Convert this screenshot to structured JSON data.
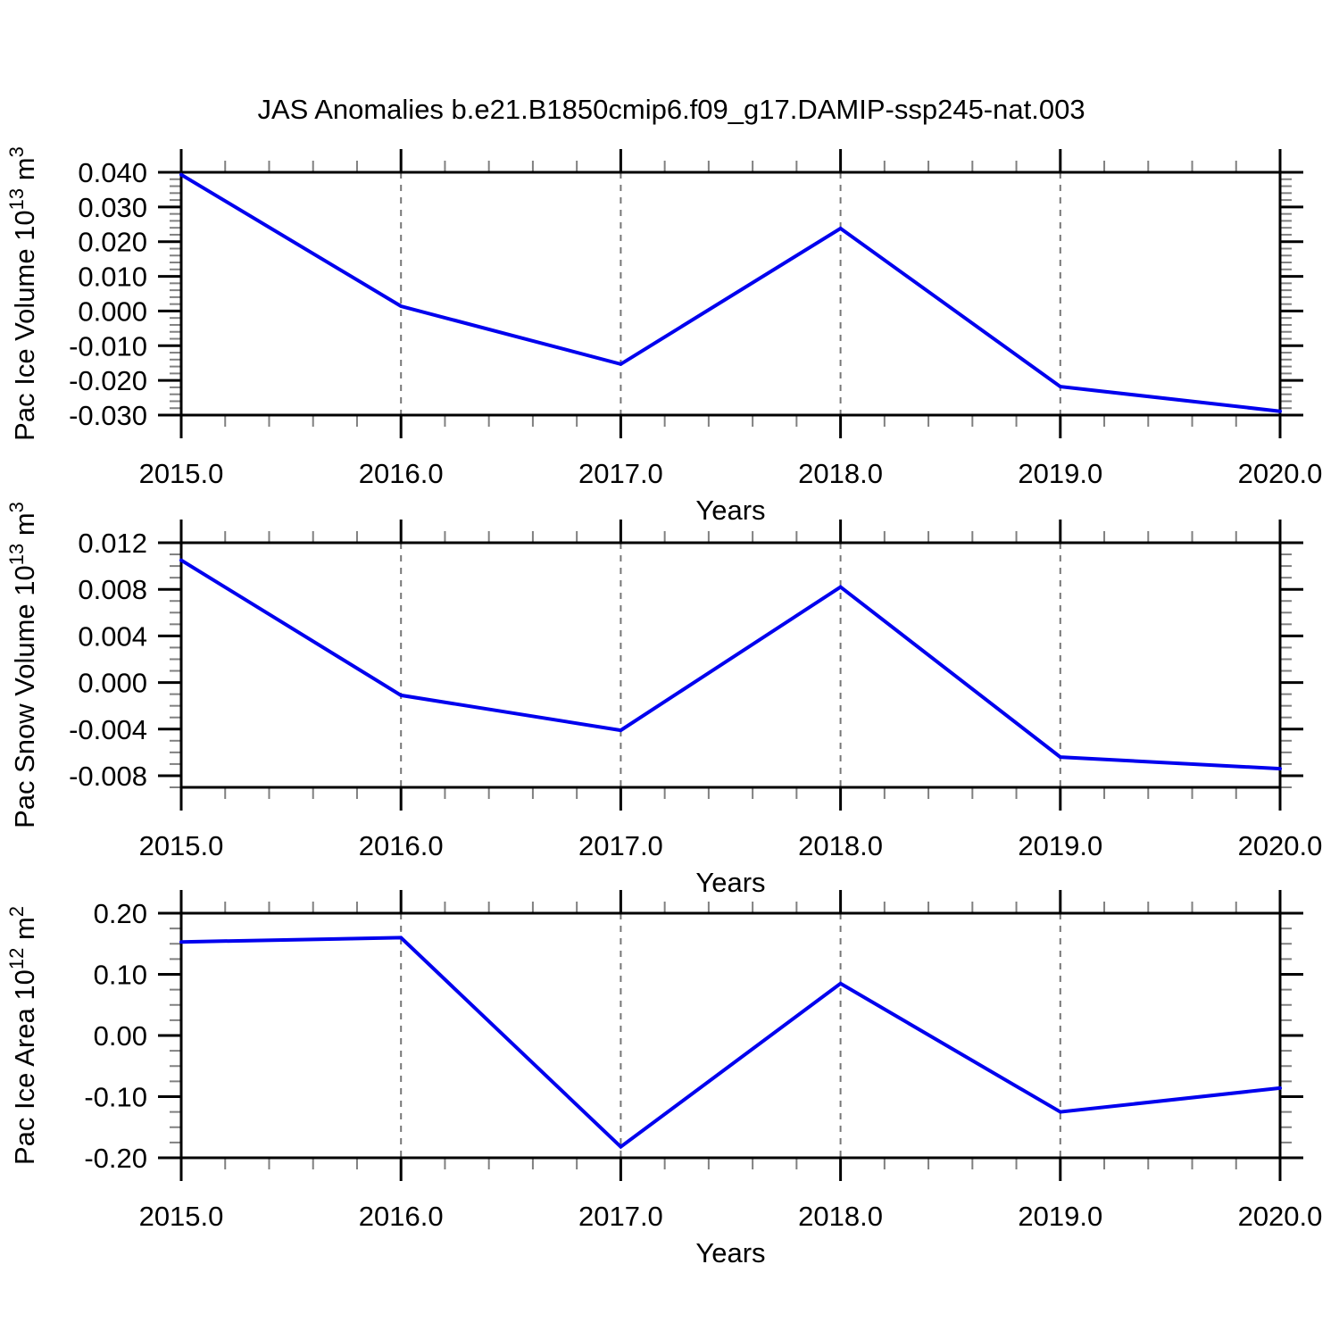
{
  "title": "JAS Anomalies b.e21.B1850cmip6.f09_g17.DAMIP-ssp245-nat.003",
  "line_color": "#0000ee",
  "axis_color": "#000000",
  "major_tick_color": "#000000",
  "minor_tick_color": "#808080",
  "grid_color": "#777777",
  "chart_data": [
    {
      "id": "pac-ice-volume",
      "type": "line",
      "x": [
        2015,
        2016,
        2017,
        2018,
        2019,
        2020
      ],
      "values": [
        0.0393,
        0.0014,
        -0.0153,
        0.0238,
        -0.0218,
        -0.0289
      ],
      "xlabel": "Years",
      "ylabel": "Pac Ice Volume 10¹³ m³",
      "ylabel_parts": [
        {
          "t": "Pac Ice Volume 10"
        },
        {
          "t": "13",
          "sup": true
        },
        {
          "t": " m"
        },
        {
          "t": "3",
          "sup": true
        }
      ],
      "xlim": [
        2015,
        2020
      ],
      "ylim": [
        -0.03,
        0.04
      ],
      "xtick_values": [
        2015,
        2016,
        2017,
        2018,
        2019,
        2020
      ],
      "xtick_labels": [
        "2015.0",
        "2016.0",
        "2017.0",
        "2018.0",
        "2019.0",
        "2020.0"
      ],
      "xminor_per_major": 4,
      "ytick_values": [
        0.04,
        0.03,
        0.02,
        0.01,
        0.0,
        -0.01,
        -0.02,
        -0.03
      ],
      "ytick_labels": [
        "0.040",
        "0.030",
        "0.020",
        "0.010",
        "0.000",
        "-0.010",
        "-0.020",
        "-0.030"
      ],
      "yminor_step": 0.002,
      "grid_x_values": [
        2016,
        2017,
        2018,
        2019
      ],
      "grid_style": "vertical-dashed",
      "legend": "none"
    },
    {
      "id": "pac-snow-volume",
      "type": "line",
      "x": [
        2015,
        2016,
        2017,
        2018,
        2019,
        2020
      ],
      "values": [
        0.0105,
        -0.0011,
        -0.0041,
        0.0082,
        -0.0064,
        -0.0074
      ],
      "xlabel": "Years",
      "ylabel": "Pac Snow Volume 10¹³ m³",
      "ylabel_parts": [
        {
          "t": "Pac Snow Volume 10"
        },
        {
          "t": "13",
          "sup": true
        },
        {
          "t": " m"
        },
        {
          "t": "3",
          "sup": true
        }
      ],
      "xlim": [
        2015,
        2020
      ],
      "ylim": [
        -0.009,
        0.012
      ],
      "xtick_values": [
        2015,
        2016,
        2017,
        2018,
        2019,
        2020
      ],
      "xtick_labels": [
        "2015.0",
        "2016.0",
        "2017.0",
        "2018.0",
        "2019.0",
        "2020.0"
      ],
      "xminor_per_major": 4,
      "ytick_values": [
        0.012,
        0.008,
        0.004,
        0.0,
        -0.004,
        -0.008
      ],
      "ytick_labels": [
        "0.012",
        "0.008",
        "0.004",
        "0.000",
        "-0.004",
        "-0.008"
      ],
      "yminor_step": 0.001,
      "grid_x_values": [
        2016,
        2017,
        2018,
        2019
      ],
      "grid_style": "vertical-dashed",
      "legend": "none"
    },
    {
      "id": "pac-ice-area",
      "type": "line",
      "x": [
        2015,
        2016,
        2017,
        2018,
        2019,
        2020
      ],
      "values": [
        0.153,
        0.16,
        -0.182,
        0.085,
        -0.125,
        -0.086
      ],
      "xlabel": "Years",
      "ylabel": "Pac Ice Area 10¹² m²",
      "ylabel_parts": [
        {
          "t": "Pac Ice Area 10"
        },
        {
          "t": "12",
          "sup": true
        },
        {
          "t": " m"
        },
        {
          "t": "2",
          "sup": true
        }
      ],
      "xlim": [
        2015,
        2020
      ],
      "ylim": [
        -0.2,
        0.2
      ],
      "xtick_values": [
        2015,
        2016,
        2017,
        2018,
        2019,
        2020
      ],
      "xtick_labels": [
        "2015.0",
        "2016.0",
        "2017.0",
        "2018.0",
        "2019.0",
        "2020.0"
      ],
      "xminor_per_major": 4,
      "ytick_values": [
        0.2,
        0.1,
        0.0,
        -0.1,
        -0.2
      ],
      "ytick_labels": [
        "0.20",
        "0.10",
        "0.00",
        "-0.10",
        "-0.20"
      ],
      "yminor_step": 0.025,
      "grid_x_values": [
        2016,
        2017,
        2018,
        2019
      ],
      "grid_style": "vertical-dashed",
      "legend": "none"
    }
  ]
}
